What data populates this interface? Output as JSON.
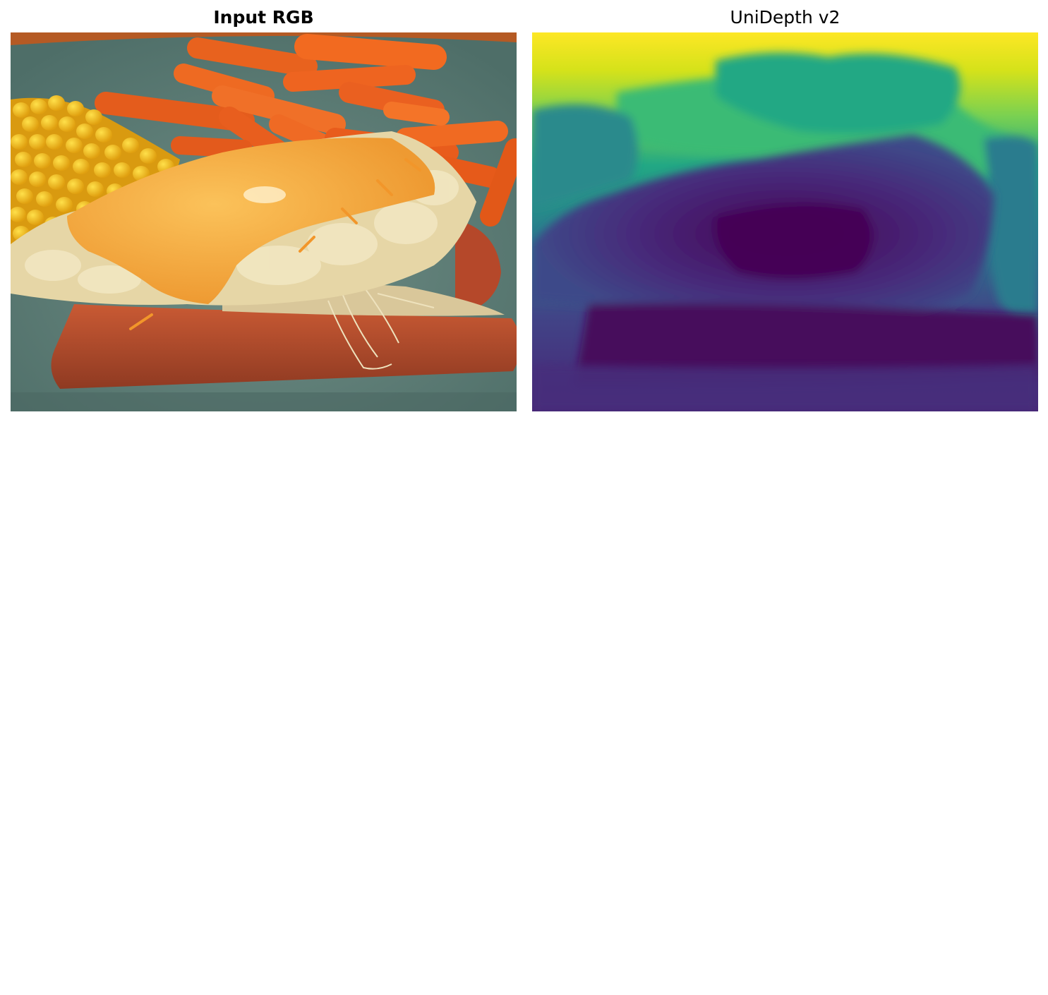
{
  "panels": {
    "left": {
      "title": "Input RGB"
    },
    "right": {
      "title": "UniDepth v2"
    }
  },
  "colors": {
    "plate": "#5f7f78",
    "table": "#c0662a",
    "carrot": "#e9621f",
    "corn": "#f2b81c",
    "cheese": "#f6a83a",
    "mash": "#ecdcb0",
    "sausage": "#b64a2c",
    "viridis_far": "#fde725",
    "viridis_mid": "#21918c",
    "viridis_near": "#440154"
  }
}
